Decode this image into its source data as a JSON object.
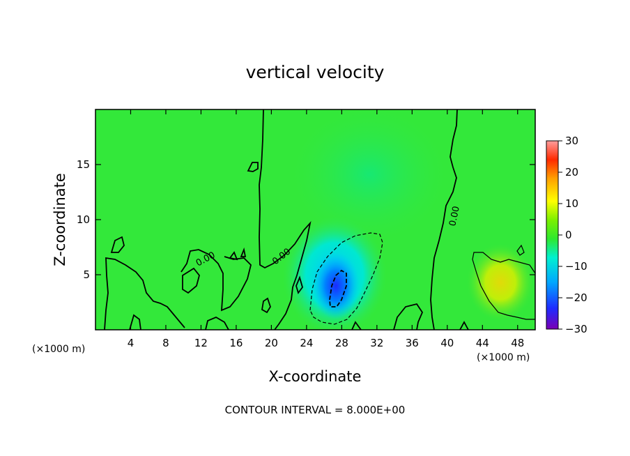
{
  "chart_data": {
    "type": "heatmap",
    "title": "vertical velocity",
    "xlabel": "X-coordinate",
    "ylabel": "Z-coordinate",
    "x_unit": "(×1000 m)",
    "xlim": [
      0,
      50
    ],
    "ylim": [
      0,
      20
    ],
    "x_ticks": [
      4,
      8,
      12,
      16,
      20,
      24,
      28,
      32,
      36,
      40,
      44,
      48
    ],
    "y_ticks": [
      5,
      10,
      15
    ],
    "colorbar": {
      "ticks": [
        30,
        20,
        10,
        0,
        -10,
        -20,
        -30
      ],
      "range": [
        -30,
        30
      ],
      "colors": [
        "#7a00b4",
        "#1f2bff",
        "#00a8ff",
        "#00f0d0",
        "#2ee82e",
        "#9cf000",
        "#ffff00",
        "#ffa000",
        "#ff2a00",
        "#ff9d9d"
      ]
    },
    "contour_interval_text": "CONTOUR INTERVAL = 8.000E+00",
    "contour_labels": [
      "0.00",
      "0.00",
      "0.00"
    ],
    "features": [
      {
        "kind": "downdraft",
        "x": 28,
        "z": 4,
        "value": -22
      },
      {
        "kind": "updraft",
        "x": 46,
        "z": 4,
        "value": 10
      }
    ]
  }
}
